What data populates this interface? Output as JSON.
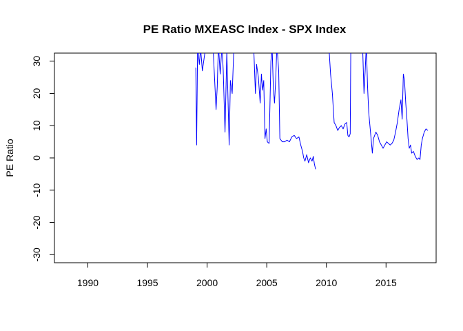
{
  "chart_data": {
    "type": "line",
    "title": "PE Ratio MXEASC Index - SPX Index",
    "xlabel": "",
    "ylabel": "PE Ratio",
    "xlim": [
      1987.2,
      2019.2
    ],
    "ylim": [
      -32.5,
      32.5
    ],
    "x_ticks": [
      1990,
      1995,
      2000,
      2005,
      2010,
      2015
    ],
    "y_ticks": [
      -30,
      -20,
      -10,
      0,
      10,
      20,
      30
    ],
    "grid": false,
    "legend": "none",
    "color": "#0000ff",
    "series": [
      {
        "values": [
          [
            1999.05,
            28.0
          ],
          [
            1999.12,
            4.0
          ],
          [
            1999.2,
            35.0
          ],
          [
            1999.35,
            29.0
          ],
          [
            1999.45,
            34.0
          ],
          [
            1999.6,
            27.0
          ],
          [
            1999.75,
            31.0
          ],
          [
            1999.9,
            35.0
          ],
          [
            2000.2,
            35.0
          ],
          [
            2000.5,
            34.0
          ],
          [
            2000.75,
            15.0
          ],
          [
            2000.85,
            22.0
          ],
          [
            2000.95,
            35.0
          ],
          [
            2001.1,
            26.0
          ],
          [
            2001.25,
            35.0
          ],
          [
            2001.35,
            27.0
          ],
          [
            2001.5,
            8.0
          ],
          [
            2001.65,
            33.0
          ],
          [
            2001.85,
            4.0
          ],
          [
            2001.95,
            24.0
          ],
          [
            2002.1,
            20.0
          ],
          [
            2002.25,
            35.0
          ],
          [
            2003.9,
            35.0
          ],
          [
            2004.05,
            20.0
          ],
          [
            2004.15,
            29.0
          ],
          [
            2004.3,
            25.0
          ],
          [
            2004.45,
            17.0
          ],
          [
            2004.55,
            26.0
          ],
          [
            2004.65,
            21.0
          ],
          [
            2004.75,
            24.0
          ],
          [
            2004.85,
            6.0
          ],
          [
            2004.95,
            9.0
          ],
          [
            2005.05,
            5.0
          ],
          [
            2005.2,
            4.5
          ],
          [
            2005.35,
            30.0
          ],
          [
            2005.45,
            34.0
          ],
          [
            2005.55,
            22.0
          ],
          [
            2005.65,
            17.0
          ],
          [
            2005.75,
            24.0
          ],
          [
            2005.85,
            35.0
          ],
          [
            2006.0,
            27.0
          ],
          [
            2006.1,
            6.0
          ],
          [
            2006.3,
            5.0
          ],
          [
            2006.5,
            5.0
          ],
          [
            2006.7,
            5.5
          ],
          [
            2006.9,
            5.0
          ],
          [
            2007.1,
            6.5
          ],
          [
            2007.3,
            7.0
          ],
          [
            2007.5,
            6.0
          ],
          [
            2007.7,
            6.5
          ],
          [
            2007.85,
            4.0
          ],
          [
            2008.0,
            2.0
          ],
          [
            2008.1,
            0.0
          ],
          [
            2008.2,
            -1.0
          ],
          [
            2008.35,
            1.0
          ],
          [
            2008.5,
            -1.5
          ],
          [
            2008.65,
            0.0
          ],
          [
            2008.8,
            -1.0
          ],
          [
            2008.9,
            0.5
          ],
          [
            2009.0,
            -2.0
          ],
          [
            2009.1,
            -3.5
          ]
        ]
      },
      {
        "values": [
          [
            2010.2,
            35.0
          ],
          [
            2010.35,
            26.0
          ],
          [
            2010.5,
            20.0
          ],
          [
            2010.65,
            11.0
          ],
          [
            2010.8,
            10.0
          ],
          [
            2010.95,
            8.5
          ],
          [
            2011.1,
            9.5
          ],
          [
            2011.25,
            10.0
          ],
          [
            2011.4,
            9.0
          ],
          [
            2011.55,
            10.5
          ],
          [
            2011.7,
            11.0
          ],
          [
            2011.8,
            7.0
          ],
          [
            2011.9,
            6.5
          ],
          [
            2012.0,
            7.5
          ],
          [
            2012.05,
            35.0
          ],
          [
            2012.95,
            35.0
          ],
          [
            2013.05,
            33.0
          ],
          [
            2013.15,
            20.0
          ],
          [
            2013.25,
            27.0
          ],
          [
            2013.35,
            35.0
          ],
          [
            2013.45,
            22.0
          ],
          [
            2013.55,
            14.0
          ],
          [
            2013.65,
            10.0
          ],
          [
            2013.75,
            6.0
          ],
          [
            2013.85,
            1.5
          ],
          [
            2013.95,
            6.0
          ],
          [
            2014.05,
            7.0
          ],
          [
            2014.15,
            8.0
          ],
          [
            2014.3,
            7.0
          ],
          [
            2014.45,
            5.0
          ],
          [
            2014.6,
            4.0
          ],
          [
            2014.75,
            3.0
          ],
          [
            2014.9,
            4.0
          ],
          [
            2015.05,
            5.0
          ],
          [
            2015.2,
            4.5
          ],
          [
            2015.35,
            4.0
          ],
          [
            2015.5,
            4.5
          ],
          [
            2015.65,
            5.5
          ],
          [
            2015.8,
            8.0
          ],
          [
            2015.95,
            11.0
          ],
          [
            2016.1,
            15.0
          ],
          [
            2016.25,
            18.0
          ],
          [
            2016.35,
            12.0
          ],
          [
            2016.45,
            26.0
          ],
          [
            2016.55,
            24.0
          ],
          [
            2016.65,
            17.0
          ],
          [
            2016.75,
            12.0
          ],
          [
            2016.85,
            6.0
          ],
          [
            2016.95,
            3.0
          ],
          [
            2017.05,
            4.0
          ],
          [
            2017.15,
            1.5
          ],
          [
            2017.3,
            2.0
          ],
          [
            2017.45,
            0.5
          ],
          [
            2017.6,
            -0.5
          ],
          [
            2017.75,
            0.0
          ],
          [
            2017.85,
            -0.5
          ],
          [
            2017.95,
            4.0
          ],
          [
            2018.05,
            6.0
          ],
          [
            2018.2,
            8.0
          ],
          [
            2018.35,
            9.0
          ],
          [
            2018.5,
            8.5
          ]
        ]
      }
    ]
  }
}
